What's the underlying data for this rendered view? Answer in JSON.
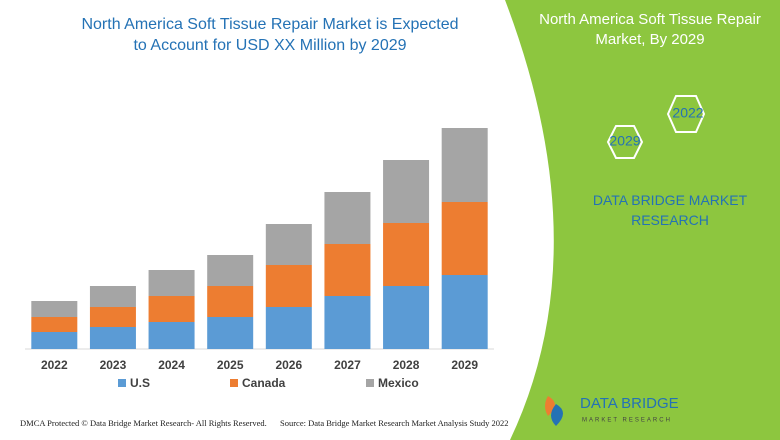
{
  "chart_data": {
    "type": "bar",
    "stacked": true,
    "title": "North America Soft Tissue Repair Market is Expected to Account for USD XX Million by 2029",
    "categories": [
      "2022",
      "2023",
      "2024",
      "2025",
      "2026",
      "2027",
      "2028",
      "2029"
    ],
    "series": [
      {
        "name": "U.S",
        "color": "#5b9bd5",
        "values": [
          17,
          22,
          27,
          32,
          42,
          53,
          63,
          74
        ]
      },
      {
        "name": "Canada",
        "color": "#ed7d31",
        "values": [
          15,
          20,
          26,
          31,
          42,
          52,
          63,
          73
        ]
      },
      {
        "name": "Mexico",
        "color": "#a5a5a5",
        "values": [
          16,
          21,
          26,
          31,
          41,
          52,
          63,
          74
        ]
      }
    ],
    "ylim": [
      0,
      250
    ],
    "legend": "bottom"
  },
  "side_panel": {
    "title": "North America Soft Tissue Repair Market, By 2029",
    "hex_labels": [
      "2022",
      "2029"
    ],
    "brand": "DATA BRIDGE MARKET RESEARCH"
  },
  "logo": {
    "name": "DATA BRIDGE",
    "tagline": "MARKET RESEARCH"
  },
  "footer": {
    "left": "DMCA Protected © Data Bridge Market Research- All Rights Reserved.",
    "right": "Source: Data Bridge Market Research Market Analysis Study 2022"
  }
}
